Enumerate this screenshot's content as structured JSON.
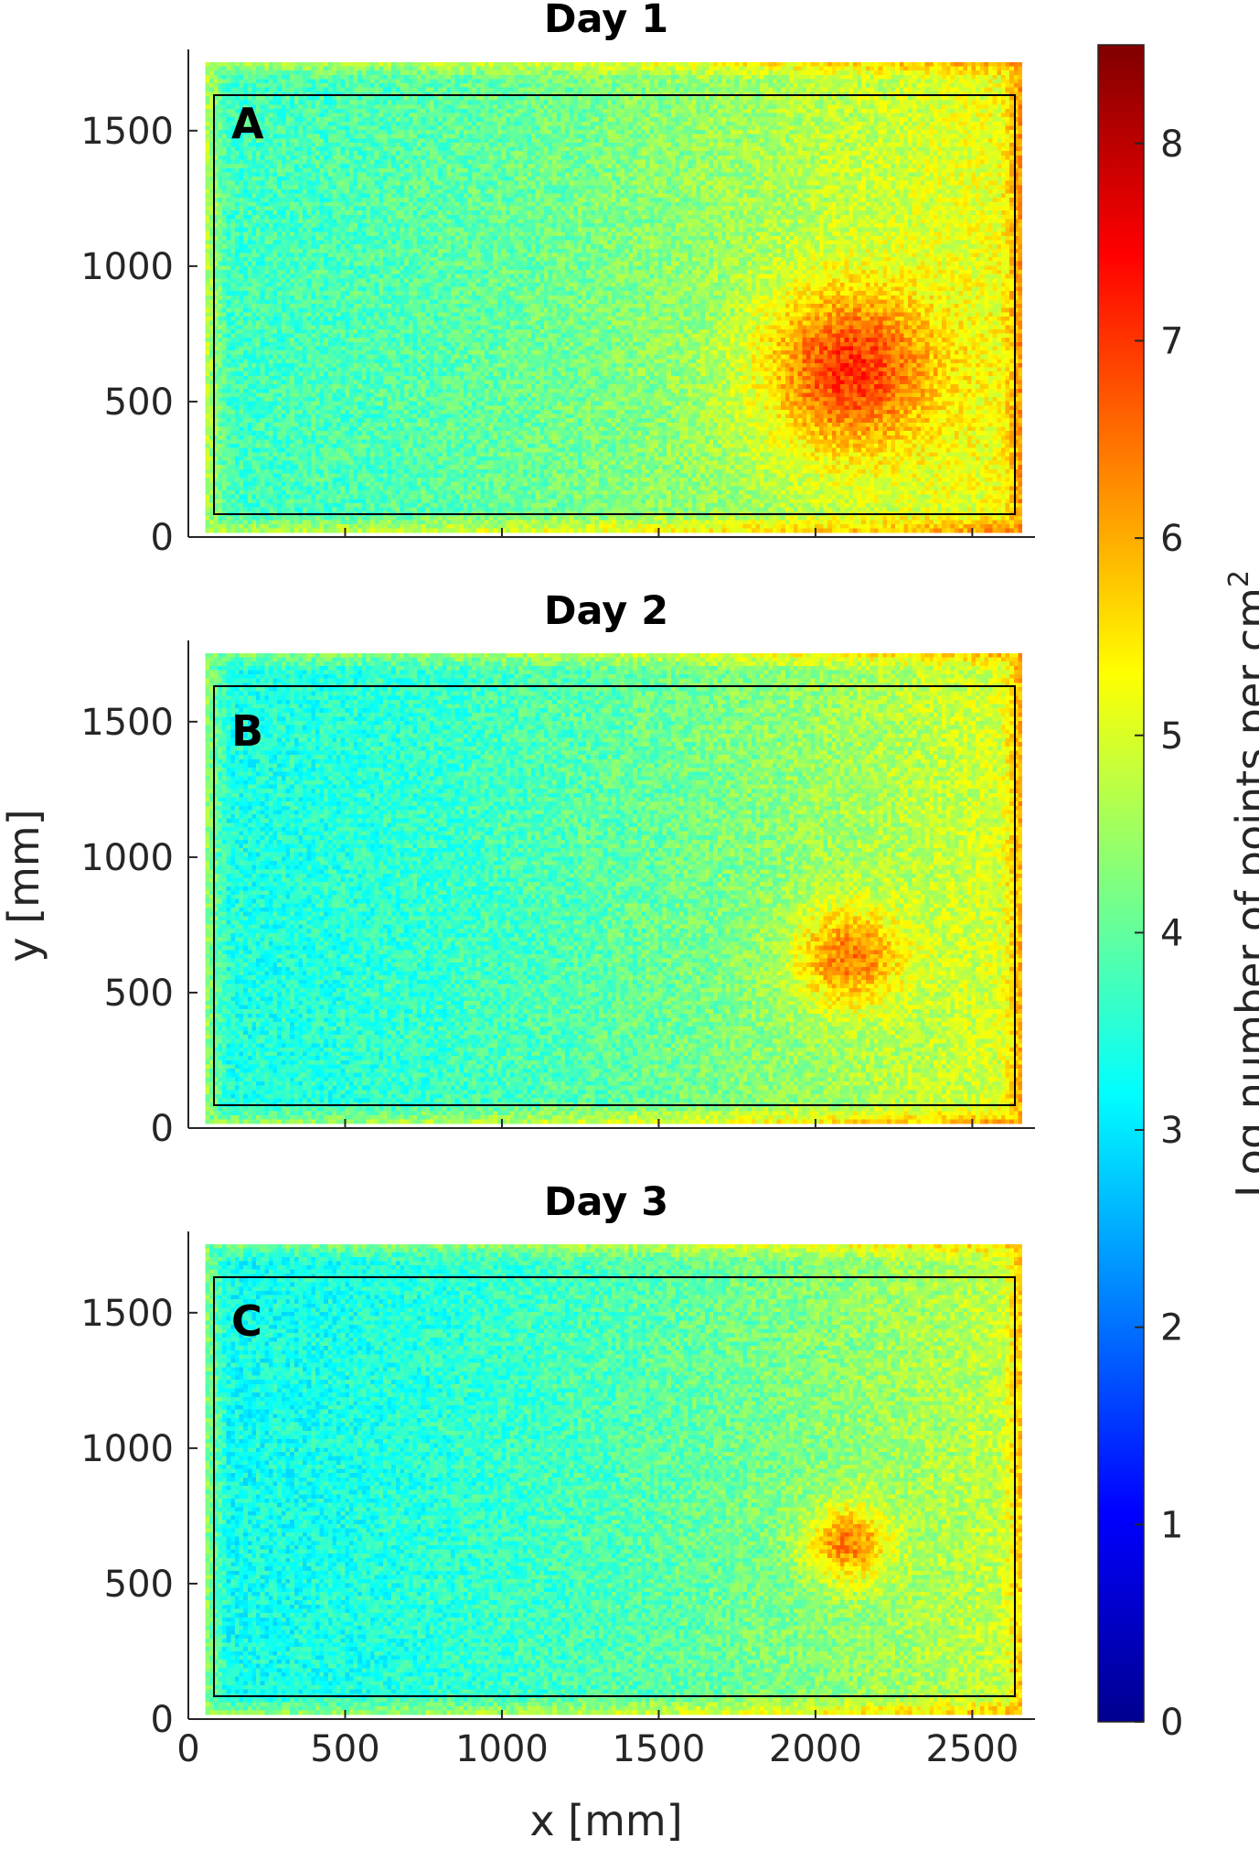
{
  "chart_data": {
    "type": "heatmap",
    "panels": [
      {
        "title": "Day 1",
        "letter": "A",
        "hotspot": {
          "x": 2100,
          "y": 620,
          "peak": 7.6,
          "spread_x": 190,
          "spread_y": 210
        },
        "background": {
          "left": 3.7,
          "right": 5.3
        }
      },
      {
        "title": "Day 2",
        "letter": "B",
        "hotspot": {
          "x": 2100,
          "y": 630,
          "peak": 7.0,
          "spread_x": 120,
          "spread_y": 130
        },
        "background": {
          "left": 3.4,
          "right": 5.1
        }
      },
      {
        "title": "Day 3",
        "letter": "C",
        "hotspot": {
          "x": 2100,
          "y": 650,
          "peak": 6.9,
          "spread_x": 90,
          "spread_y": 100
        },
        "background": {
          "left": 3.3,
          "right": 4.9
        }
      }
    ],
    "inner_rectangle": {
      "x": [
        120,
        2620
      ],
      "y": [
        100,
        1620
      ]
    },
    "xlim": [
      0,
      2700
    ],
    "ylim": [
      0,
      1800
    ],
    "xticks": [
      "0",
      "500",
      "1000",
      "1500",
      "2000",
      "2500"
    ],
    "yticks": [
      "0",
      "500",
      "1000",
      "1500"
    ],
    "xlabel": "x [mm]",
    "ylabel": "y [mm]",
    "colorbar": {
      "label": "Log number of points per cm",
      "label_superscript": "2",
      "range": [
        0,
        8.5
      ],
      "ticks": [
        "0",
        "1",
        "2",
        "3",
        "4",
        "5",
        "6",
        "7",
        "8"
      ],
      "colormap": "jet"
    }
  }
}
